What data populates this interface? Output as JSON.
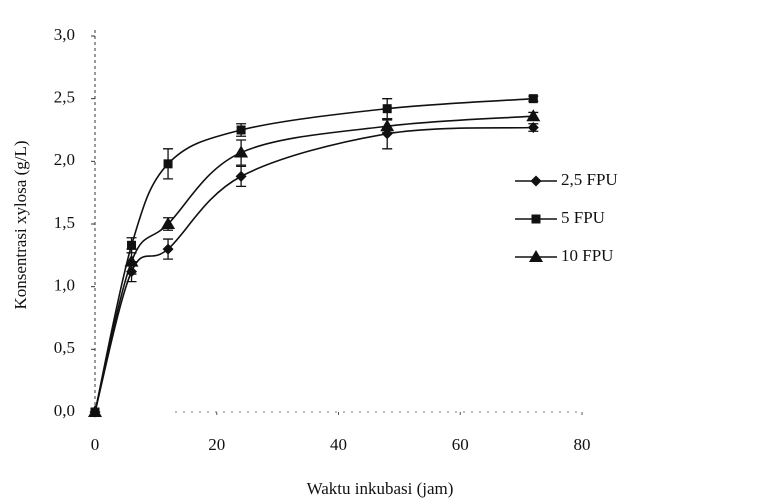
{
  "chart_data": {
    "type": "line",
    "x_label": "Waktu inkubasi (jam)",
    "y_label": "Konsentrasi xylosa (g/L)",
    "xlim": [
      0,
      80
    ],
    "xticks": [
      0,
      20,
      40,
      60,
      80
    ],
    "ylim": [
      0,
      3
    ],
    "yticks": [
      {
        "value": 0,
        "label": "0,0"
      },
      {
        "value": 0.5,
        "label": "0,5"
      },
      {
        "value": 1,
        "label": "1,0"
      },
      {
        "value": 1.5,
        "label": "1,5"
      },
      {
        "value": 2,
        "label": "2,0"
      },
      {
        "value": 2.5,
        "label": "2,5"
      },
      {
        "value": 3,
        "label": "3,0"
      }
    ],
    "x": [
      0,
      6,
      12,
      24,
      48,
      72
    ],
    "series": [
      {
        "name": "2,5 FPU",
        "color": "#111111",
        "marker": "diamond",
        "values": [
          0,
          1.12,
          1.3,
          1.88,
          2.22,
          2.27
        ],
        "errors": [
          0,
          0.08,
          0.08,
          0.08,
          0.12,
          0.03
        ]
      },
      {
        "name": "5 FPU",
        "color": "#111111",
        "marker": "square",
        "values": [
          0,
          1.33,
          1.98,
          2.25,
          2.42,
          2.5
        ],
        "errors": [
          0,
          0.06,
          0.12,
          0.05,
          0.08,
          0.02
        ]
      },
      {
        "name": "10 FPU",
        "color": "#111111",
        "marker": "triangle",
        "values": [
          0,
          1.2,
          1.5,
          2.07,
          2.28,
          2.36
        ],
        "errors": [
          0,
          0.1,
          0.05,
          0.1,
          0.05,
          0.03
        ]
      }
    ]
  }
}
